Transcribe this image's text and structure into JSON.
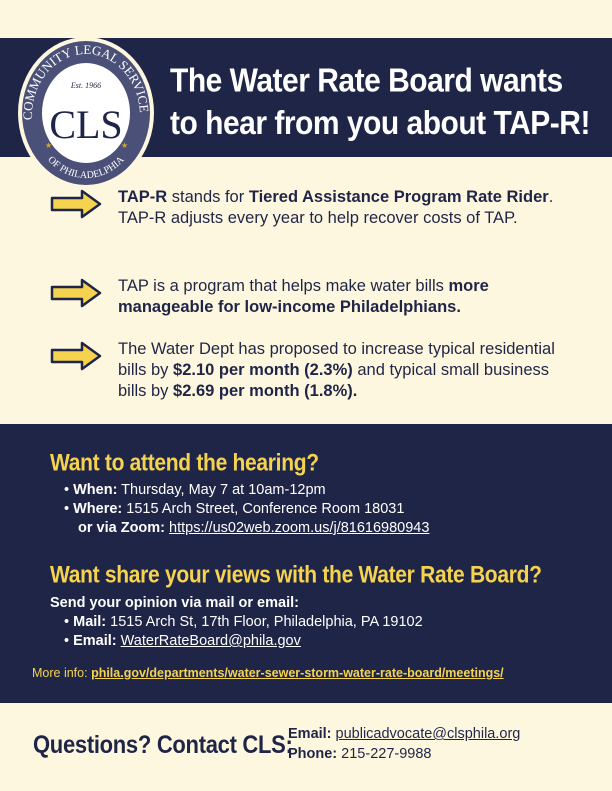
{
  "colors": {
    "navy": "#1f2547",
    "cream": "#fef7df",
    "yellow": "#f5d34f",
    "white": "#ffffff"
  },
  "logo": {
    "top_text": "COMMUNITY LEGAL SERVICES",
    "bottom_text": "OF PHILADELPHIA",
    "est": "Est. 1966",
    "initials": "CLS"
  },
  "header": {
    "line1": "The Water Rate Board wants",
    "line2": "to hear from you about TAP-R!"
  },
  "points": [
    {
      "icon": "arrow-right-icon",
      "b1": "TAP-R",
      "t1": " stands for ",
      "b2": "Tiered Assistance Program Rate Rider",
      "t2": ". TAP-R adjusts every year to help recover costs of TAP."
    },
    {
      "icon": "arrow-right-icon",
      "t1": "TAP is a program that helps make water bills ",
      "b1": "more manageable for low-income Philadelphians."
    },
    {
      "icon": "arrow-right-icon",
      "t1": "The Water Dept has proposed to increase typical residential bills by ",
      "b1": "$2.10 per month (2.3%)",
      "t2": " and typical small business bills by ",
      "b2": "$2.69 per month (1.8%)."
    }
  ],
  "hearing": {
    "title": "Want to attend the hearing?",
    "when_label": "When:",
    "when": " Thursday, May 7 at 10am-12pm",
    "where_label": "Where:",
    "where": " 1515 Arch Street, Conference Room 18031",
    "zoom_label": "or via Zoom:",
    "zoom_link": "https://us02web.zoom.us/j/81616980943"
  },
  "share": {
    "title": "Want share your views with the Water Rate Board?",
    "intro": "Send your opinion via mail or email:",
    "mail_label": "Mail:",
    "mail": " 1515 Arch St, 17th Floor, Philadelphia, PA 19102",
    "email_label": "Email:",
    "email": "WaterRateBoard@phila.gov"
  },
  "more": {
    "label": "More info: ",
    "link": "phila.gov/departments/water-sewer-storm-water-rate-board/meetings/"
  },
  "contact": {
    "title": "Questions? Contact CLS:",
    "email_label": "Email:",
    "email": "publicadvocate@clsphila.org",
    "phone_label": "Phone:",
    "phone": "215-227-9988"
  }
}
